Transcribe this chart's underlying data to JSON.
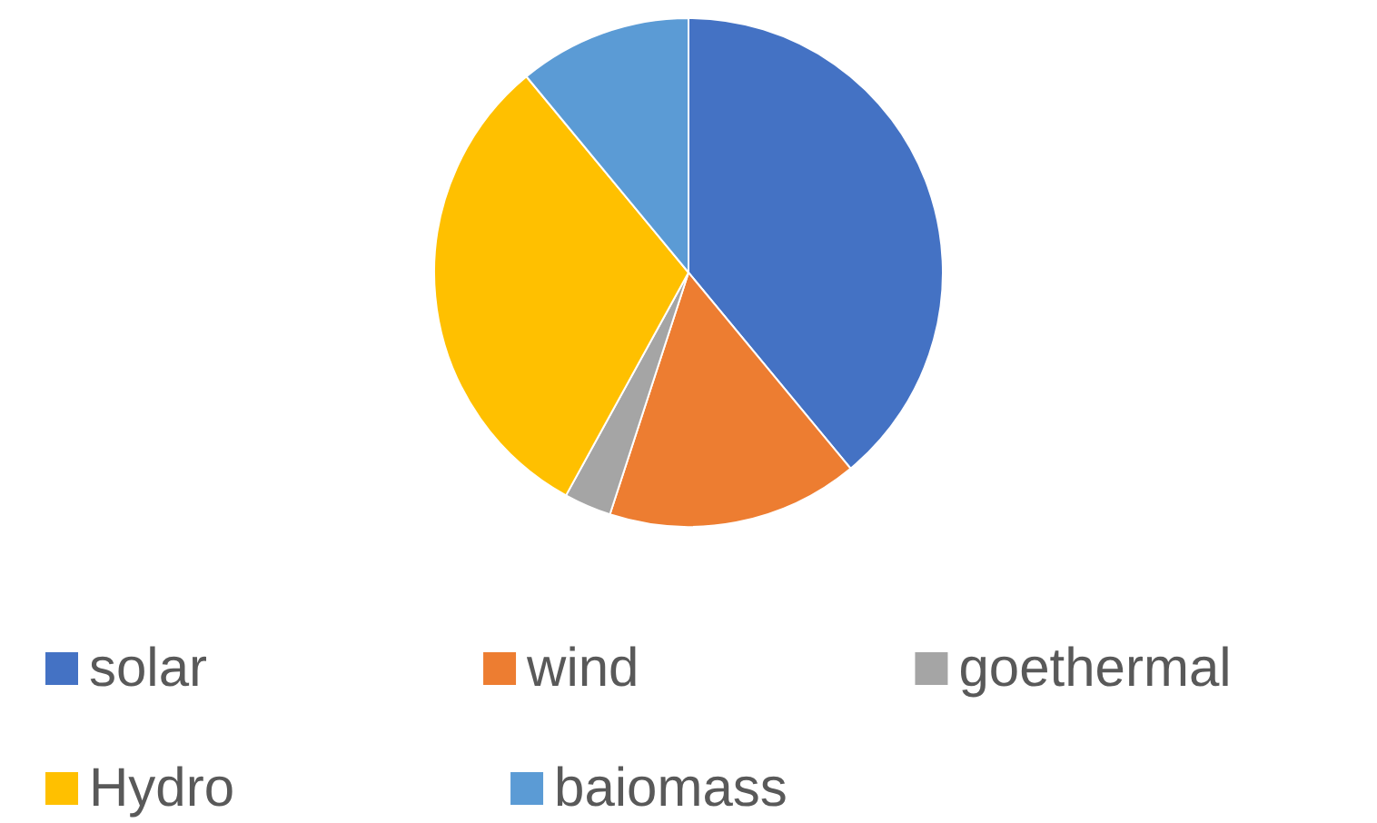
{
  "chart_data": {
    "type": "pie",
    "categories": [
      "solar",
      "wind",
      "goethermal",
      "Hydro",
      "baiomass"
    ],
    "values": [
      39,
      16,
      3,
      31,
      11
    ],
    "colors": [
      "#4472c4",
      "#ed7d31",
      "#a5a5a5",
      "#ffc000",
      "#5b9bd5"
    ],
    "legend": "bottom"
  }
}
